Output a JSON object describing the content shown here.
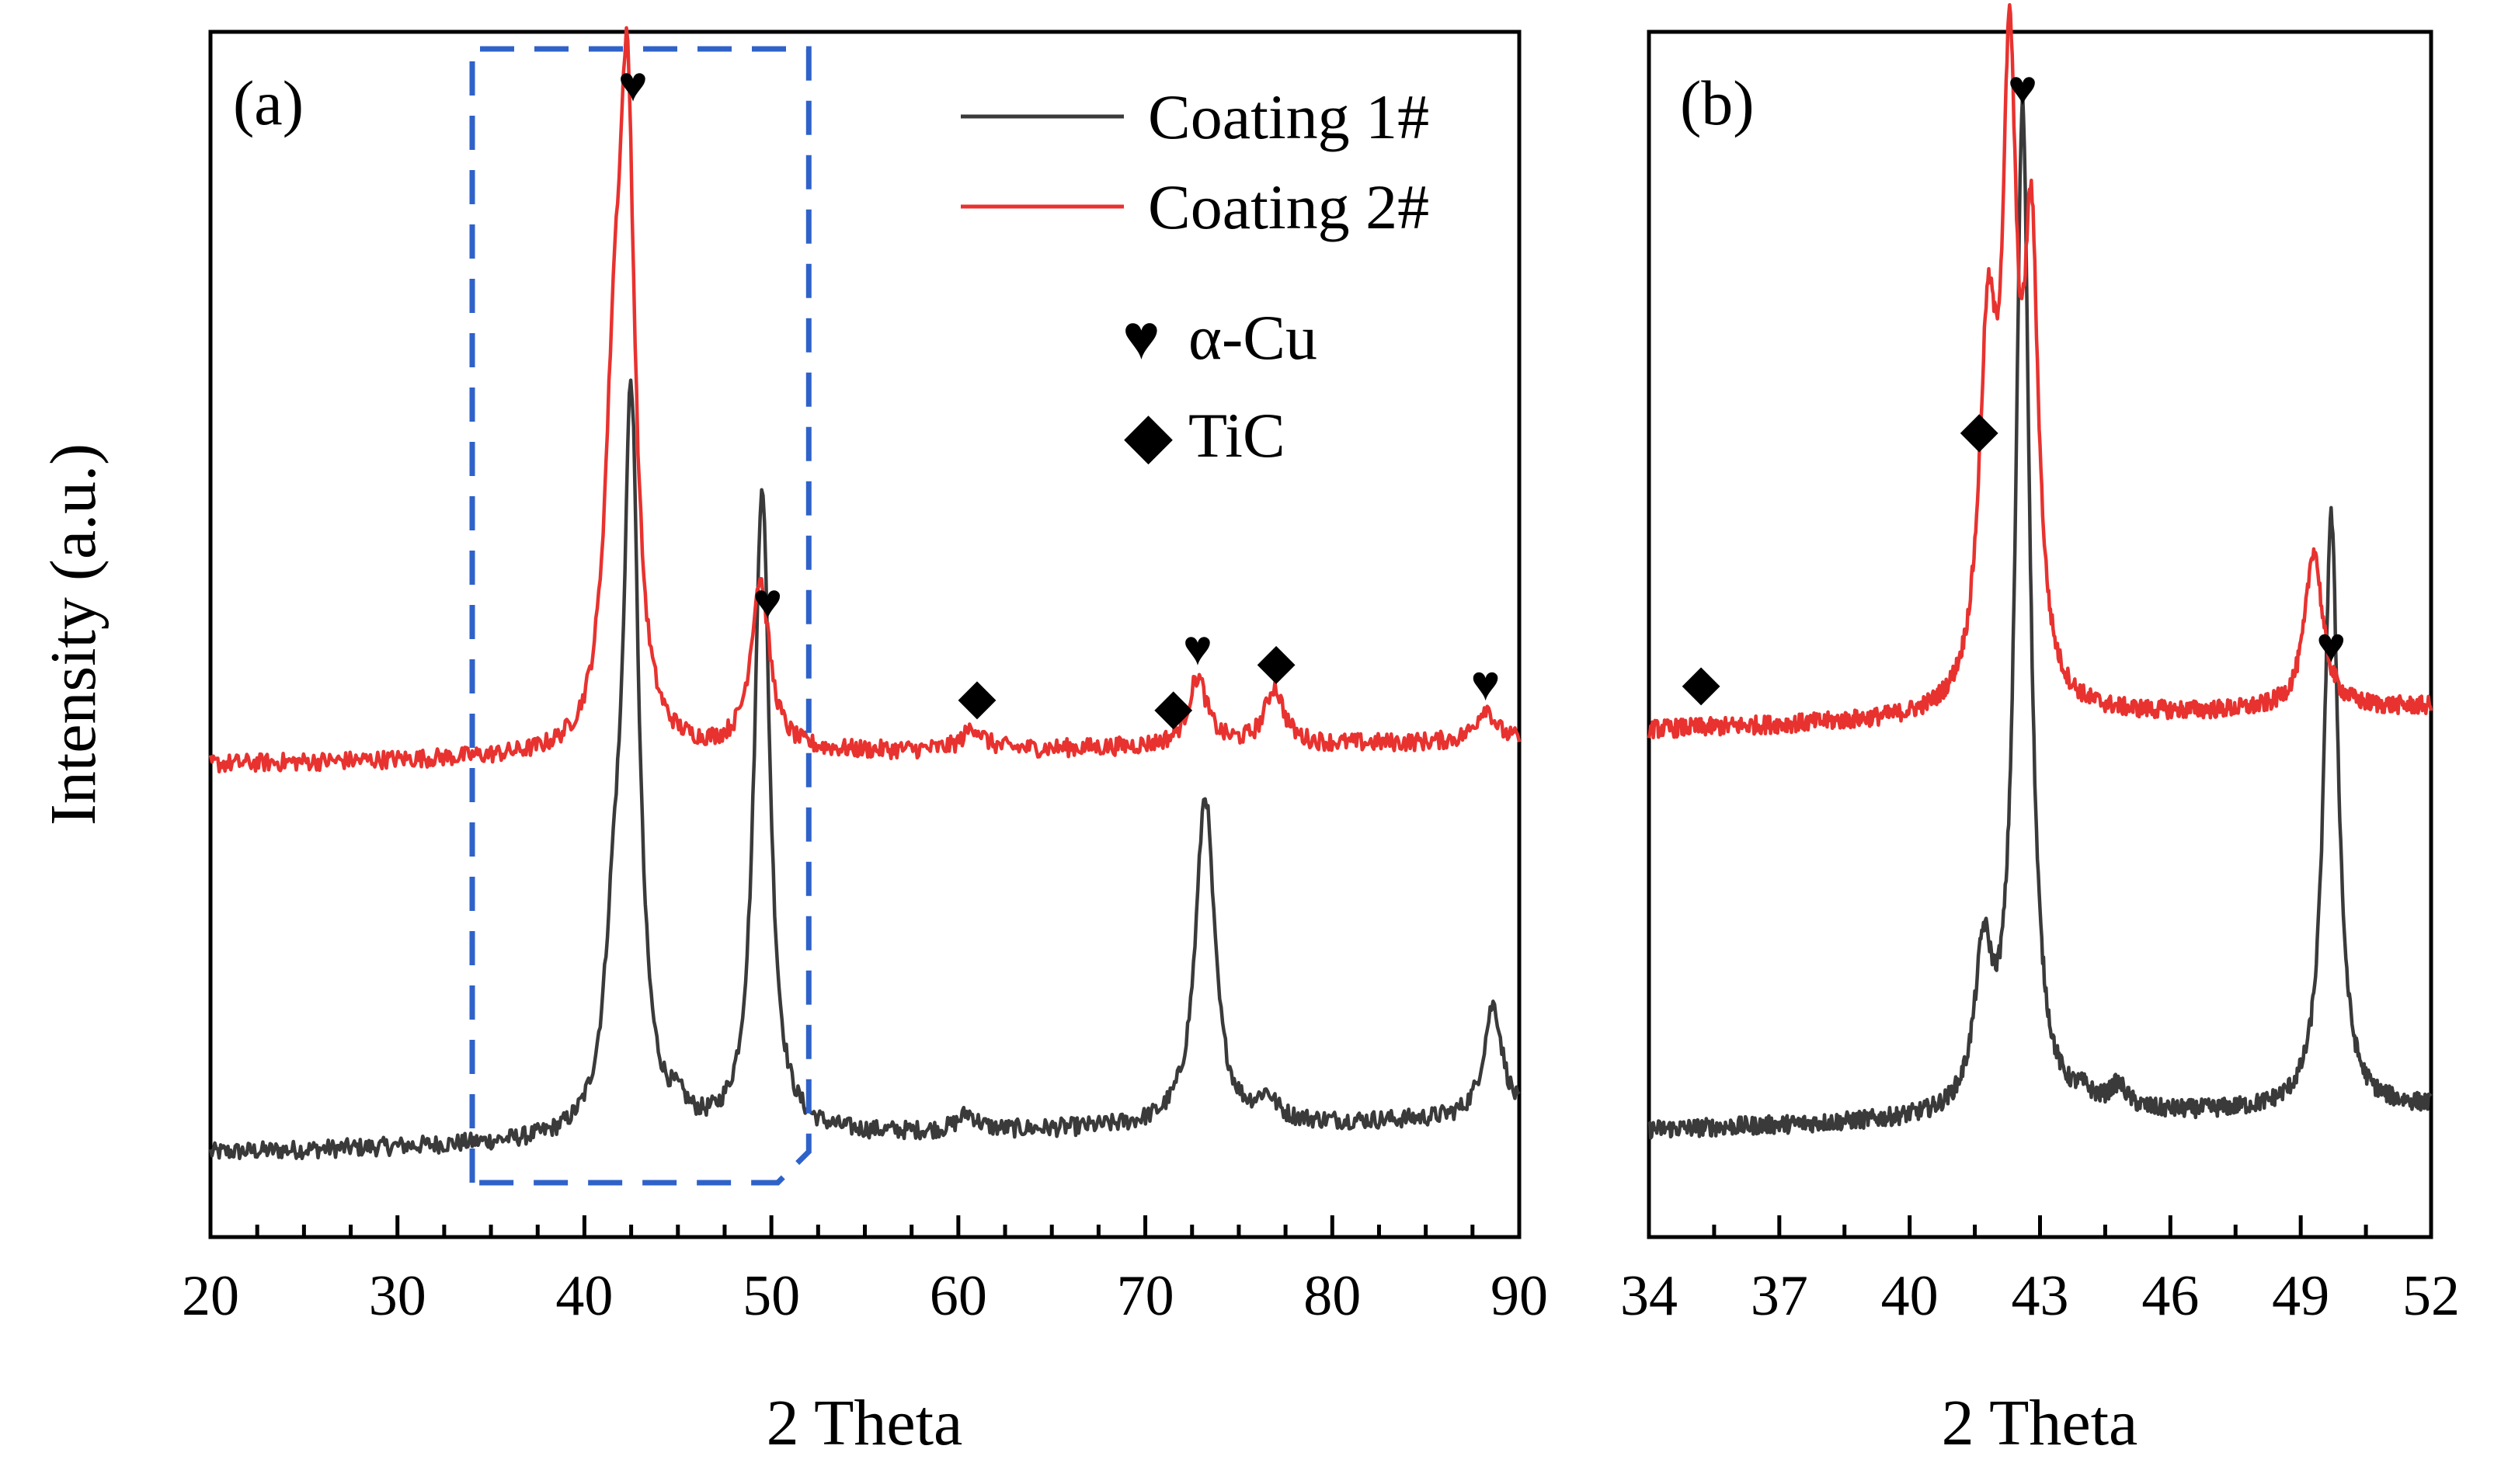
{
  "chart_data": [
    {
      "type": "line",
      "panel_label": "(a)",
      "xlabel": "2 Theta",
      "ylabel": "Intensity (a.u.)",
      "xlim": [
        20,
        90
      ],
      "ylim": [
        0,
        100
      ],
      "xticks": [
        20,
        30,
        40,
        50,
        60,
        70,
        80,
        90
      ],
      "yticks_shown": false,
      "highlight_box": {
        "x_range": [
          34,
          52
        ],
        "style": "dashed",
        "color": "#2f62c9"
      },
      "series": [
        {
          "name": "Coating 1#",
          "color": "#3a3a3a",
          "peaks": [
            [
              41.6,
              14
            ],
            [
              42.5,
              62
            ],
            [
              45,
              1.5
            ],
            [
              49.5,
              57
            ],
            [
              60.5,
              1.5
            ],
            [
              73.2,
              29
            ],
            [
              76.5,
              2
            ],
            [
              88.6,
              10
            ]
          ],
          "baseline": [
            [
              20,
              6
            ],
            [
              90,
              9
            ]
          ]
        },
        {
          "name": "Coating 2#",
          "color": "#e8322f",
          "peaks": [
            [
              41.6,
              27
            ],
            [
              42.3,
              51
            ],
            [
              49.4,
              15
            ],
            [
              60.8,
              2
            ],
            [
              72.8,
              6
            ],
            [
              76.9,
              5
            ],
            [
              88.2,
              3
            ]
          ],
          "baseline": [
            [
              20,
              40
            ],
            [
              90,
              42
            ]
          ]
        }
      ],
      "legend": {
        "location": "top-right",
        "entries": [
          "Coating 1#",
          "Coating 2#",
          "α-Cu",
          "TiC"
        ]
      },
      "annotations": [
        {
          "phase": "α-Cu",
          "symbol": "♥",
          "x": 42.6
        },
        {
          "phase": "α-Cu",
          "symbol": "♥",
          "x": 49.8
        },
        {
          "phase": "TiC",
          "symbol": "◆",
          "x": 61
        },
        {
          "phase": "TiC",
          "symbol": "◆",
          "x": 71.5
        },
        {
          "phase": "α-Cu",
          "symbol": "♥",
          "x": 72.8
        },
        {
          "phase": "TiC",
          "symbol": "◆",
          "x": 77
        },
        {
          "phase": "α-Cu",
          "symbol": "♥",
          "x": 88.2
        }
      ]
    },
    {
      "type": "line",
      "panel_label": "(b)",
      "xlabel": "2 Theta",
      "xlim": [
        34,
        52
      ],
      "ylim": [
        0,
        100
      ],
      "xticks": [
        34,
        37,
        40,
        43,
        46,
        49,
        52
      ],
      "yticks_shown": false,
      "series": [
        {
          "name": "Coating 1#",
          "color": "#3a3a3a",
          "peaks": [
            [
              41.7,
              13
            ],
            [
              42.6,
              88
            ],
            [
              44,
              1
            ],
            [
              44.8,
              2
            ],
            [
              49.7,
              52
            ]
          ],
          "baseline": [
            [
              34,
              8
            ],
            [
              52,
              10
            ]
          ]
        },
        {
          "name": "Coating 2#",
          "color": "#e8322f",
          "peaks": [
            [
              41.8,
              30
            ],
            [
              42.3,
              51
            ],
            [
              42.8,
              38
            ],
            [
              49.3,
              14
            ]
          ],
          "baseline": [
            [
              34,
              43
            ],
            [
              52,
              45
            ]
          ]
        }
      ],
      "annotations": [
        {
          "phase": "TiC",
          "symbol": "◆",
          "x": 35.2
        },
        {
          "phase": "TiC",
          "symbol": "◆",
          "x": 41.6
        },
        {
          "phase": "α-Cu",
          "symbol": "♥",
          "x": 42.6
        },
        {
          "phase": "α-Cu",
          "symbol": "♥",
          "x": 49.7
        }
      ]
    }
  ]
}
